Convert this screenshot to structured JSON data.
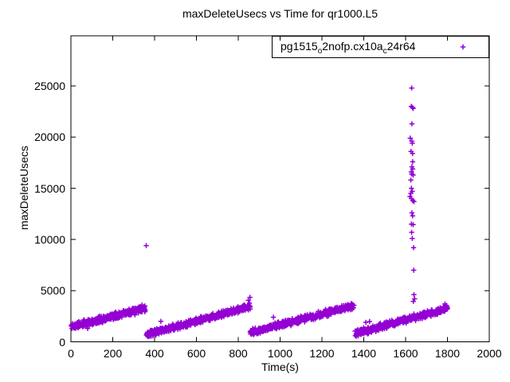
{
  "chart_data": {
    "type": "scatter",
    "title": "maxDeleteUsecs vs Time for qr1000.L5",
    "xlabel": "Time(s)",
    "ylabel": "maxDeleteUsecs",
    "xlim": [
      0,
      2000
    ],
    "ylim": [
      0,
      29900
    ],
    "xticks": [
      0,
      200,
      400,
      600,
      800,
      1000,
      1200,
      1400,
      1600,
      1800,
      2000
    ],
    "yticks": [
      0,
      5000,
      10000,
      15000,
      20000,
      25000
    ],
    "grid": false,
    "legend": {
      "position": "top-right-boxed",
      "label_plain": "pg1515_o2nofp.cx10a_c24r64",
      "label_parts": [
        {
          "text": "pg1515",
          "sub": false
        },
        {
          "text": "o",
          "sub": true
        },
        {
          "text": "2nofp.cx10a",
          "sub": false
        },
        {
          "text": "c",
          "sub": true
        },
        {
          "text": "24r64",
          "sub": false
        }
      ],
      "marker": "plus"
    },
    "series": [
      {
        "name": "pg1515_o2nofp.cx10a_c24r64",
        "color": "#9400D3",
        "marker": "plus",
        "ramps": [
          {
            "t_start": 2,
            "t_end": 355,
            "v_start": 1500,
            "v_end": 3250,
            "points": 420,
            "jitter": 380
          },
          {
            "t_start": 362,
            "t_end": 858,
            "v_start": 700,
            "v_end": 3450,
            "points": 480,
            "jitter": 380
          },
          {
            "t_start": 858,
            "t_end": 1352,
            "v_start": 900,
            "v_end": 3500,
            "points": 470,
            "jitter": 380
          },
          {
            "t_start": 1360,
            "t_end": 1800,
            "v_start": 800,
            "v_end": 3250,
            "points": 430,
            "jitter": 380
          }
        ],
        "outliers": [
          [
            360,
            9400
          ],
          [
            430,
            2000
          ],
          [
            80,
            1300
          ],
          [
            340,
            3600
          ],
          [
            352,
            3450
          ],
          [
            848,
            4050
          ],
          [
            856,
            4350
          ],
          [
            968,
            2400
          ],
          [
            1340,
            3750
          ],
          [
            1410,
            1900
          ],
          [
            1428,
            1980
          ],
          [
            1788,
            3700
          ],
          [
            1795,
            3550
          ]
        ],
        "spike_cluster": [
          [
            1629,
            24800
          ],
          [
            1627,
            23000
          ],
          [
            1633,
            22900
          ],
          [
            1636,
            22800
          ],
          [
            1630,
            21300
          ],
          [
            1622,
            19900
          ],
          [
            1630,
            19600
          ],
          [
            1632,
            19400
          ],
          [
            1626,
            18600
          ],
          [
            1633,
            18400
          ],
          [
            1634,
            17600
          ],
          [
            1630,
            17100
          ],
          [
            1634,
            16900
          ],
          [
            1627,
            16600
          ],
          [
            1629,
            16400
          ],
          [
            1636,
            16300
          ],
          [
            1625,
            15800
          ],
          [
            1628,
            15000
          ],
          [
            1632,
            14700
          ],
          [
            1625,
            14500
          ],
          [
            1621,
            14200
          ],
          [
            1628,
            14000
          ],
          [
            1634,
            13800
          ],
          [
            1640,
            13700
          ],
          [
            1630,
            12600
          ],
          [
            1634,
            12300
          ],
          [
            1628,
            11500
          ],
          [
            1636,
            11450
          ],
          [
            1629,
            10700
          ],
          [
            1632,
            10100
          ],
          [
            1638,
            9200
          ],
          [
            1639,
            7000
          ],
          [
            1640,
            4600
          ],
          [
            1643,
            4200
          ],
          [
            1637,
            3950
          ]
        ]
      }
    ]
  }
}
